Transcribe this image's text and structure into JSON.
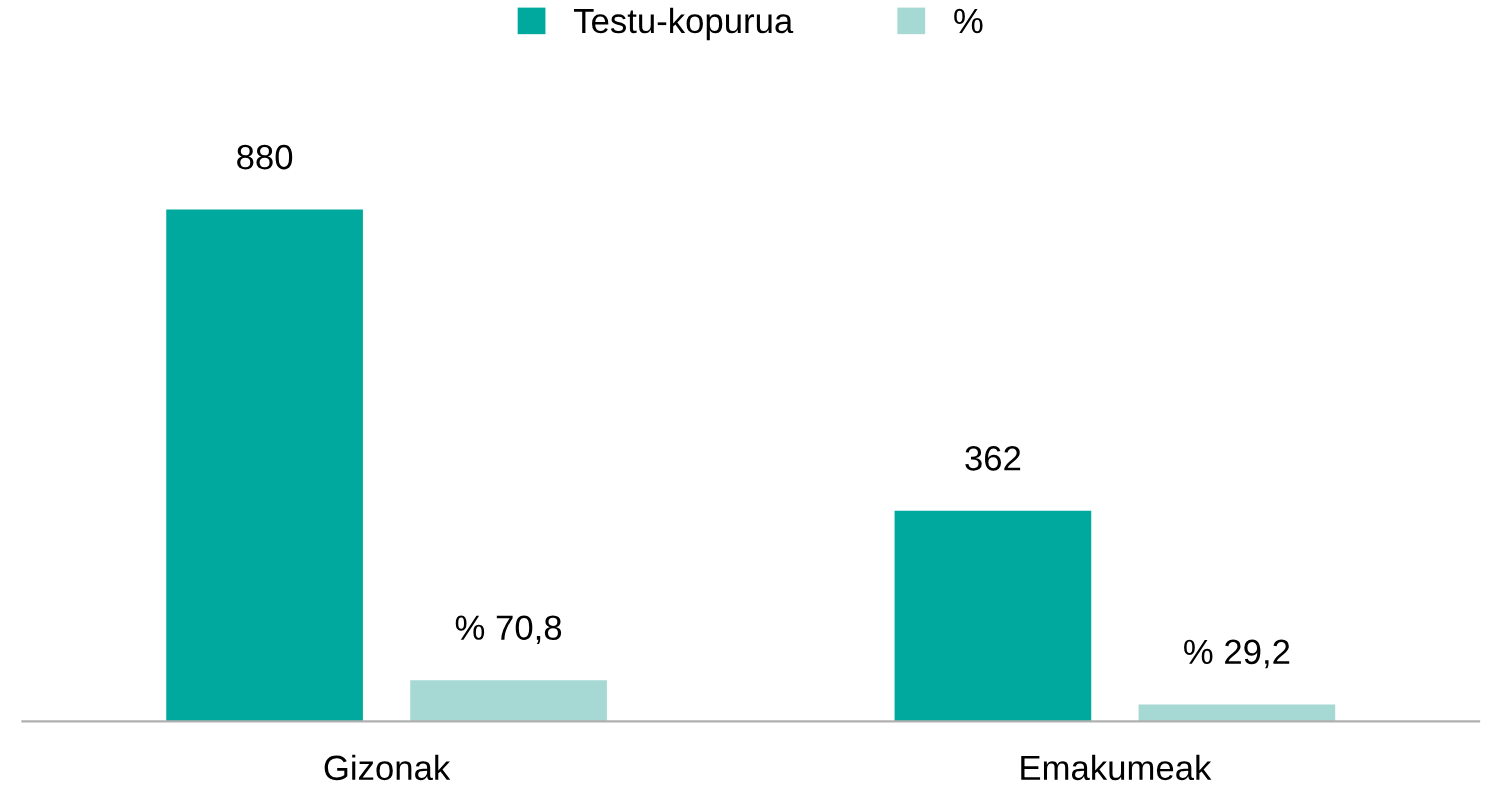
{
  "chart_data": {
    "type": "bar",
    "categories": [
      "Gizonak",
      "Emakumeak"
    ],
    "series": [
      {
        "name": "Testu-kopurua",
        "color": "#00a99d",
        "values": [
          880,
          362
        ],
        "value_labels": [
          "880",
          "362"
        ]
      },
      {
        "name": "%",
        "color": "#a6d8d4",
        "values": [
          70.8,
          29.2
        ],
        "value_labels": [
          "% 70,8",
          "% 29,2"
        ]
      }
    ],
    "legend": "top",
    "grid": false
  }
}
